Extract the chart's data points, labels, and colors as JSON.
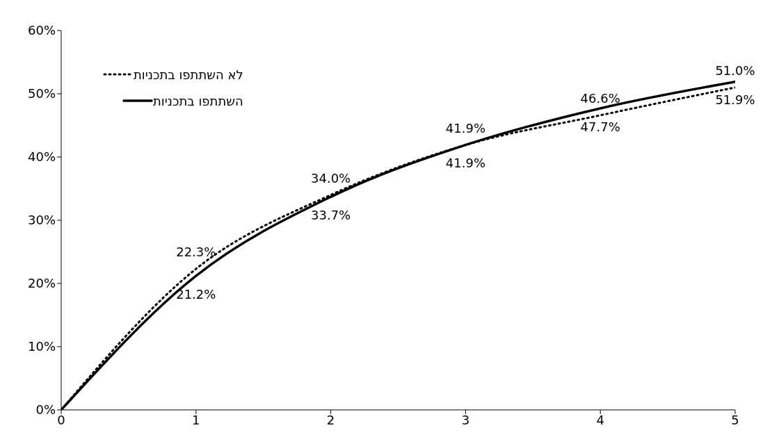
{
  "chart_data": {
    "type": "line",
    "x": [
      0,
      1,
      2,
      3,
      4,
      5
    ],
    "series": [
      {
        "name": "לא השתתפו בתכניות",
        "color": "#000000",
        "line_style": "dotted",
        "values": [
          0,
          22.3,
          34.0,
          41.9,
          46.6,
          51.0
        ],
        "value_labels": [
          null,
          "22.3%",
          "34.0%",
          "41.9%",
          "46.6%",
          "51.0%"
        ]
      },
      {
        "name": "השתתפו בתכניות",
        "color": "#000000",
        "line_style": "solid",
        "values": [
          0,
          21.2,
          33.7,
          41.9,
          47.7,
          51.9
        ],
        "value_labels": [
          null,
          "21.2%",
          "33.7%",
          "41.9%",
          "47.7%",
          "51.9%"
        ]
      }
    ],
    "xlim": [
      0,
      5
    ],
    "xticks": [
      0,
      1,
      2,
      3,
      4,
      5
    ],
    "ylim": [
      0,
      60
    ],
    "yticks": [
      {
        "value": 0,
        "label": "0%"
      },
      {
        "value": 10,
        "label": "10%"
      },
      {
        "value": 20,
        "label": "20%"
      },
      {
        "value": 30,
        "label": "30%"
      },
      {
        "value": 40,
        "label": "40%"
      },
      {
        "value": 50,
        "label": "50%"
      },
      {
        "value": 60,
        "label": "60%"
      }
    ],
    "grid": false,
    "legend": "top left",
    "marker": "none"
  }
}
